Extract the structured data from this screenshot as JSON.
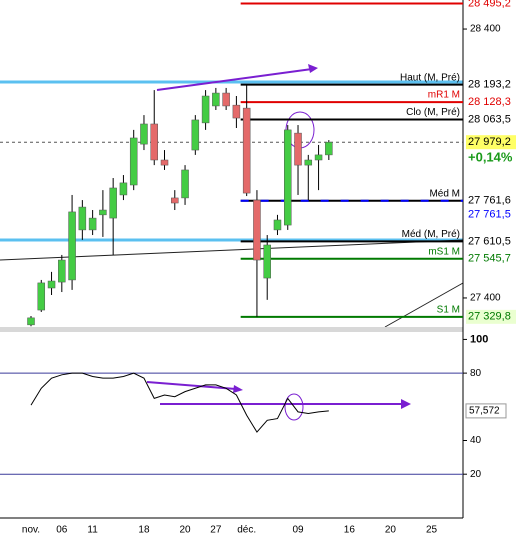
{
  "chart_data": [
    {
      "type": "candlestick",
      "categories": [
        "nov.",
        null,
        null,
        "06",
        null,
        null,
        "11",
        null,
        null,
        null,
        null,
        "18",
        null,
        null,
        null,
        "20",
        null,
        null,
        "27",
        null,
        null,
        "déc.",
        null,
        null,
        null,
        null,
        "09",
        null,
        null,
        null,
        null,
        "16",
        null,
        null,
        null,
        "20",
        null,
        null,
        null,
        "25"
      ],
      "open": [
        27300,
        27355,
        27437,
        27459,
        27467,
        27653,
        27653,
        27709,
        27697,
        27783,
        27820,
        27972,
        28047,
        27913,
        27772,
        27772,
        27950,
        28051,
        28114,
        28162,
        28117,
        28106,
        27764,
        27474,
        27653,
        27671,
        28013,
        27894,
        27913,
        27932,
        null,
        null,
        null,
        null,
        null,
        null,
        null,
        null,
        null,
        null
      ],
      "high": [
        27333,
        27467,
        27497,
        27560,
        27783,
        27764,
        27727,
        27801,
        27846,
        27857,
        28025,
        28080,
        28173,
        27950,
        27801,
        27894,
        28080,
        28173,
        28181,
        28181,
        28151,
        28192,
        27801,
        27634,
        27709,
        28043,
        28043,
        27932,
        27969,
        27987,
        null,
        null,
        null,
        null,
        null,
        null,
        null,
        null,
        null,
        null
      ],
      "low": [
        27295,
        27348,
        27411,
        27422,
        27430,
        27616,
        27634,
        27627,
        27560,
        27764,
        27801,
        27950,
        27894,
        27876,
        27727,
        27746,
        27932,
        28025,
        28099,
        28099,
        28032,
        27779,
        27330,
        27393,
        27634,
        27653,
        27783,
        27764,
        27801,
        27913,
        null,
        null,
        null,
        null,
        null,
        null,
        null,
        null,
        null,
        null
      ],
      "close": [
        27326,
        27456,
        27463,
        27541,
        27720,
        27738,
        27697,
        27727,
        27809,
        27828,
        27995,
        28047,
        27913,
        27894,
        27753,
        27876,
        28062,
        28151,
        28162,
        28114,
        28069,
        27790,
        27541,
        27597,
        27690,
        28025,
        27894,
        27913,
        27932,
        27979.2,
        null,
        null,
        null,
        null,
        null,
        null,
        null,
        null,
        null,
        null
      ],
      "up_color": "#44cc44",
      "down_color": "#e46a6a",
      "ylim": [
        27292,
        28508
      ],
      "yticks": [
        {
          "value": 28400,
          "label": "28 400"
        },
        {
          "value": 27400,
          "label": "27 400"
        }
      ],
      "levels": [
        {
          "value": 28495.2,
          "label": "28 495,2",
          "color": "#e00000",
          "text_color": "#e00000"
        },
        {
          "name": "Haut (M, Pré)",
          "value": 28193.2,
          "label": "28 193,2",
          "color": "#000000",
          "text_color": "#000000"
        },
        {
          "name": "mR1 M",
          "value": 28128.3,
          "label": "28 128,3",
          "color": "#e00000",
          "text_color": "#e00000"
        },
        {
          "name": "Clo (M, Pré)",
          "value": 28063.5,
          "label": "28 063,5",
          "color": "#000000",
          "text_color": "#000000"
        },
        {
          "value": 27979.2,
          "label": "27 979,2",
          "color": "#555555",
          "text_color": "#000000",
          "background": "#ffff66",
          "style": "dashed"
        },
        {
          "name": "Méd M",
          "value": 27761.6,
          "label": "27 761,6",
          "color": "#000000",
          "text_color": "#000000"
        },
        {
          "value": 27761.5,
          "label": "27 761,5",
          "color": "#0000ff",
          "text_color": "#0000ff",
          "style": "dash-over"
        },
        {
          "name": "Méd (M, Pré)",
          "value": 27610.5,
          "label": "27 610,5",
          "color": "#000000",
          "text_color": "#000000"
        },
        {
          "name": "mS1 M",
          "value": 27545.7,
          "label": "27 545,7",
          "color": "#007a00",
          "text_color": "#007a00"
        },
        {
          "name": "S1 M",
          "value": 27329.8,
          "label": "27 329,8",
          "color": "#007a00",
          "text_color": "#007a00",
          "background": "#eaffd0"
        }
      ],
      "change": "+0,14%"
    },
    {
      "type": "line",
      "values": [
        61,
        71,
        77,
        79,
        80,
        80,
        78,
        77,
        77,
        78,
        80,
        77,
        65,
        67,
        66,
        69,
        71,
        73,
        73,
        71,
        67,
        55,
        45,
        52,
        53,
        65,
        57,
        56,
        57,
        57.572,
        null,
        null,
        null,
        null,
        null,
        null,
        null,
        null,
        null,
        null
      ],
      "color": "#000000",
      "ylim": [
        -6,
        105
      ],
      "yticks": [
        100,
        80,
        40,
        20
      ],
      "last_value": {
        "value": 57.572,
        "label": "57,572"
      }
    }
  ]
}
